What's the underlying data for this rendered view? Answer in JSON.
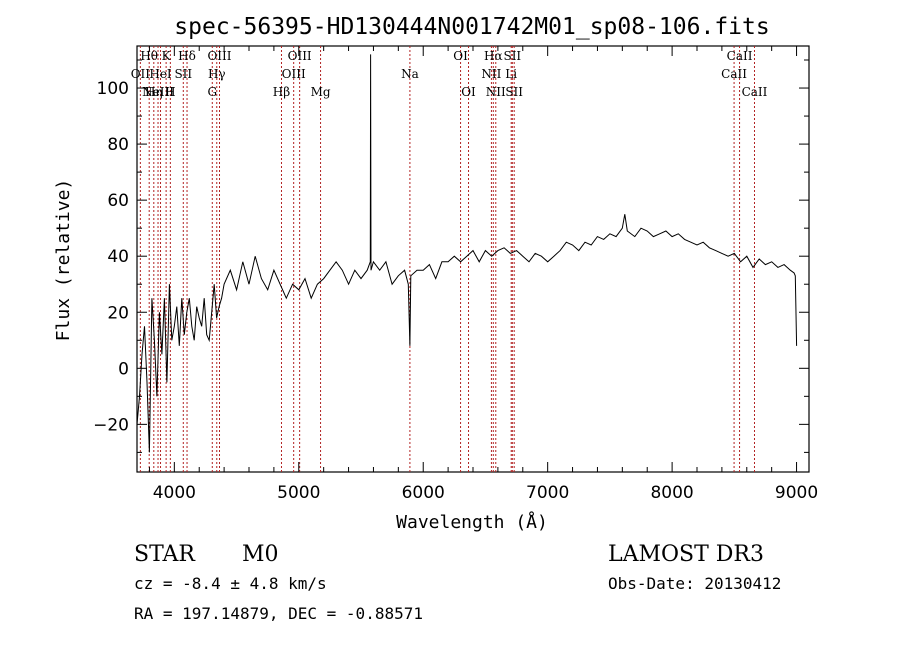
{
  "chart_data": {
    "type": "line",
    "title": "spec-56395-HD130444N001742M01_sp08-106.fits",
    "xlabel": "Wavelength (Å)",
    "ylabel": "Flux (relative)",
    "xlim": [
      3700,
      9100
    ],
    "ylim": [
      -37,
      115
    ],
    "xticks": [
      4000,
      5000,
      6000,
      7000,
      8000,
      9000
    ],
    "yticks": [
      -20,
      0,
      20,
      40,
      60,
      80,
      100
    ],
    "x": [
      3700,
      3720,
      3740,
      3760,
      3780,
      3800,
      3820,
      3840,
      3860,
      3880,
      3900,
      3920,
      3940,
      3960,
      3980,
      4000,
      4020,
      4040,
      4060,
      4080,
      4100,
      4120,
      4140,
      4160,
      4180,
      4200,
      4220,
      4240,
      4260,
      4280,
      4300,
      4320,
      4340,
      4360,
      4380,
      4400,
      4450,
      4500,
      4550,
      4600,
      4650,
      4700,
      4750,
      4800,
      4850,
      4900,
      4950,
      5000,
      5050,
      5100,
      5150,
      5200,
      5250,
      5300,
      5350,
      5400,
      5450,
      5500,
      5550,
      5575,
      5577,
      5580,
      5600,
      5650,
      5700,
      5750,
      5800,
      5850,
      5880,
      5893,
      5900,
      5950,
      6000,
      6050,
      6100,
      6150,
      6200,
      6250,
      6300,
      6350,
      6400,
      6450,
      6500,
      6550,
      6600,
      6650,
      6700,
      6750,
      6800,
      6850,
      6900,
      6950,
      7000,
      7050,
      7100,
      7150,
      7200,
      7250,
      7300,
      7350,
      7400,
      7450,
      7500,
      7550,
      7600,
      7620,
      7640,
      7700,
      7750,
      7800,
      7850,
      7900,
      7950,
      8000,
      8050,
      8100,
      8150,
      8200,
      8250,
      8300,
      8350,
      8400,
      8450,
      8500,
      8550,
      8600,
      8650,
      8700,
      8750,
      8800,
      8850,
      8900,
      8950,
      8980,
      8990,
      9000
    ],
    "y": [
      -20,
      -10,
      5,
      15,
      -5,
      -30,
      25,
      10,
      -10,
      20,
      5,
      25,
      -5,
      30,
      10,
      15,
      22,
      8,
      25,
      12,
      20,
      25,
      15,
      10,
      22,
      18,
      15,
      25,
      12,
      10,
      20,
      30,
      18,
      22,
      25,
      30,
      35,
      28,
      38,
      30,
      40,
      32,
      28,
      35,
      30,
      25,
      30,
      28,
      32,
      25,
      30,
      32,
      35,
      38,
      35,
      30,
      35,
      32,
      35,
      38,
      112,
      35,
      38,
      35,
      38,
      30,
      33,
      35,
      30,
      8,
      33,
      35,
      35,
      37,
      32,
      38,
      38,
      40,
      38,
      40,
      42,
      38,
      42,
      40,
      42,
      43,
      41,
      42,
      40,
      38,
      41,
      40,
      38,
      40,
      42,
      45,
      44,
      42,
      45,
      44,
      47,
      46,
      48,
      47,
      50,
      55,
      49,
      47,
      50,
      49,
      47,
      48,
      49,
      47,
      48,
      46,
      45,
      44,
      45,
      43,
      42,
      41,
      40,
      41,
      38,
      40,
      36,
      39,
      37,
      38,
      36,
      37,
      35,
      34,
      33,
      8
    ],
    "reference_lines": [
      {
        "x": 3727,
        "label": "OII",
        "row": 1
      },
      {
        "x": 3798,
        "label": "Hθ",
        "row": 0
      },
      {
        "x": 3835,
        "label": "Hη",
        "row": 2
      },
      {
        "x": 3869,
        "label": "NeIII",
        "row": 2
      },
      {
        "x": 3889,
        "label": "HeI",
        "row": 1
      },
      {
        "x": 3934,
        "label": "K",
        "row": 0
      },
      {
        "x": 3968,
        "label": "H",
        "row": 2
      },
      {
        "x": 4072,
        "label": "SII",
        "row": 1
      },
      {
        "x": 4102,
        "label": "Hδ",
        "row": 0
      },
      {
        "x": 4305,
        "label": "G",
        "row": 2
      },
      {
        "x": 4341,
        "label": "Hγ",
        "row": 1
      },
      {
        "x": 4363,
        "label": "OIII",
        "row": 0
      },
      {
        "x": 4861,
        "label": "Hβ",
        "row": 2
      },
      {
        "x": 4959,
        "label": "OIII",
        "row": 1
      },
      {
        "x": 5007,
        "label": "OIII",
        "row": 0
      },
      {
        "x": 5175,
        "label": "Mg",
        "row": 2
      },
      {
        "x": 5893,
        "label": "Na",
        "row": 1
      },
      {
        "x": 6300,
        "label": "OI",
        "row": 0
      },
      {
        "x": 6364,
        "label": "OI",
        "row": 2
      },
      {
        "x": 6548,
        "label": "NII",
        "row": 1
      },
      {
        "x": 6563,
        "label": "Hα",
        "row": 0
      },
      {
        "x": 6583,
        "label": "NII",
        "row": 2
      },
      {
        "x": 6707,
        "label": "Li",
        "row": 1
      },
      {
        "x": 6716,
        "label": "SII",
        "row": 0
      },
      {
        "x": 6731,
        "label": "SII",
        "row": 2
      },
      {
        "x": 8498,
        "label": "CaII",
        "row": 1
      },
      {
        "x": 8542,
        "label": "CaII",
        "row": 0
      },
      {
        "x": 8662,
        "label": "CaII",
        "row": 2
      }
    ],
    "line_color": "#000000",
    "reference_line_color": "#b22222"
  },
  "footer": {
    "object_class": "STAR",
    "subclass": "M0",
    "survey": "LAMOST DR3",
    "cz": "cz = -8.4 ± 4.8 km/s",
    "obs_date": "Obs-Date: 20130412",
    "coords": "RA = 197.14879, DEC =  -0.88571"
  }
}
